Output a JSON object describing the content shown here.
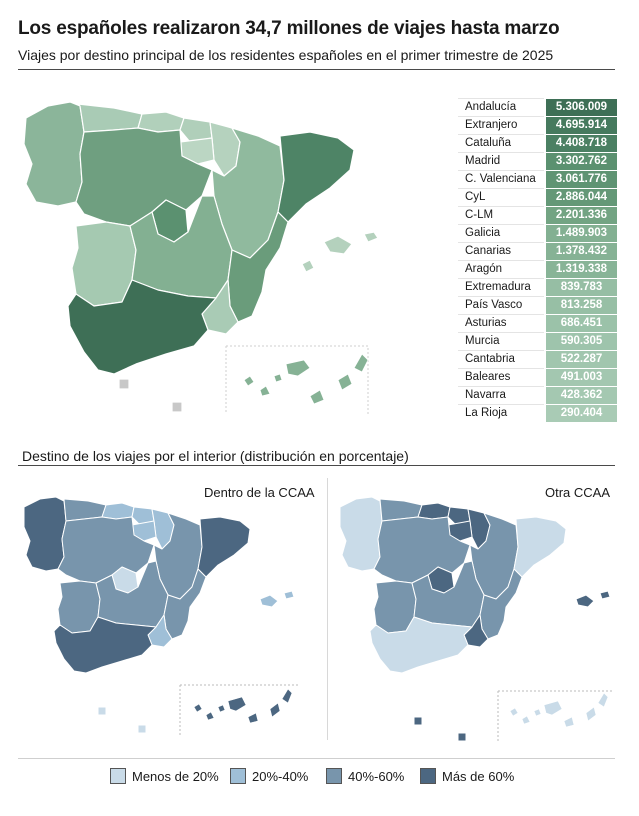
{
  "header": {
    "title": "Los españoles realizaron 34,7 millones de viajes hasta marzo",
    "subtitle": "Viajes por destino principal de los residentes españoles en el primer trimestre de 2025"
  },
  "section2": {
    "title": "Destino de los viajes por el interior (distribución en porcentaje)"
  },
  "panels": {
    "left_title": "Dentro de la CCAA",
    "right_title": "Otra CCAA"
  },
  "table": {
    "rows": [
      {
        "name": "Andalucía",
        "value": "5.306.009",
        "color": "#3e6f56"
      },
      {
        "name": "Extranjero",
        "value": "4.695.914",
        "color": "#467a5e"
      },
      {
        "name": "Cataluña",
        "value": "4.408.718",
        "color": "#4b8063"
      },
      {
        "name": "Madrid",
        "value": "3.302.762",
        "color": "#5b9170"
      },
      {
        "name": "C. Valenciana",
        "value": "3.061.776",
        "color": "#5f9473"
      },
      {
        "name": "CyL",
        "value": "2.886.044",
        "color": "#649877"
      },
      {
        "name": "C-LM",
        "value": "2.201.336",
        "color": "#73a483"
      },
      {
        "name": "Galicia",
        "value": "1.489.903",
        "color": "#83b092"
      },
      {
        "name": "Canarias",
        "value": "1.378.432",
        "color": "#86b295"
      },
      {
        "name": "Aragón",
        "value": "1.319.338",
        "color": "#88b497"
      },
      {
        "name": "Extremadura",
        "value": "839.783",
        "color": "#96bea4"
      },
      {
        "name": "País Vasco",
        "value": "813.258",
        "color": "#97bfa5"
      },
      {
        "name": "Asturias",
        "value": "686.451",
        "color": "#9bc2a9"
      },
      {
        "name": "Murcia",
        "value": "590.305",
        "color": "#9ec4ac"
      },
      {
        "name": "Cantabria",
        "value": "522.287",
        "color": "#a1c6ae"
      },
      {
        "name": "Baleares",
        "value": "491.003",
        "color": "#a3c7b0"
      },
      {
        "name": "Navarra",
        "value": "428.362",
        "color": "#a4c8b1"
      },
      {
        "name": "La Rioja",
        "value": "290.404",
        "color": "#a9cbb5"
      }
    ]
  },
  "legend": {
    "items": [
      {
        "label": "Menos de 20%",
        "color": "#c9dbe8"
      },
      {
        "label": "20%-40%",
        "color": "#9fbfd7"
      },
      {
        "label": "40%-60%",
        "color": "#7895ac"
      },
      {
        "label": "Más de 60%",
        "color": "#4c6781"
      }
    ]
  },
  "colors": {
    "green_dark": "#3e6f56",
    "green_mid": "#7aaa89",
    "green_light": "#a7c9b2",
    "green_pale": "#bcd6c4",
    "blue_pale": "#c9dbe8",
    "blue_light": "#9fbfd7",
    "blue_mid": "#7895ac",
    "blue_dark": "#4c6781",
    "border": "#ffffff"
  }
}
